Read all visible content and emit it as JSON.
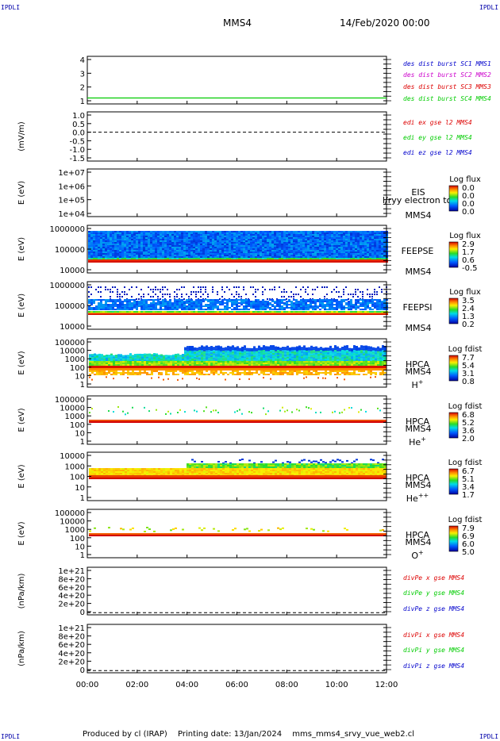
{
  "corners": [
    "IPDLI",
    "IPDLI",
    "IPDLI",
    "IPDLI"
  ],
  "header": {
    "spacecraft": "MMS4",
    "date": "14/Feb/2020 00:00"
  },
  "footer": {
    "produced_by": "Produced by cl (IRAP)",
    "printing_date": "Printing date: 13/Jan/2024",
    "script": "mms_mms4_srvy_vue_web2.cl"
  },
  "time_axis": {
    "ticks": [
      "00:00",
      "02:00",
      "04:00",
      "06:00",
      "08:00",
      "10:00",
      "12:00"
    ],
    "range_hours": [
      0,
      12
    ]
  },
  "colors": {
    "blue": "#0000cc",
    "magenta": "#cc00cc",
    "red": "#dd0000",
    "green": "#00cc00"
  },
  "chart_data": [
    {
      "type": "line",
      "id": "des",
      "ylabel": "",
      "yticks": [
        "4",
        "3",
        "2",
        "1"
      ],
      "ylim": [
        0.5,
        4.5
      ],
      "legend": [
        {
          "text": "des dist burst SC1 MMS1",
          "color": "#0000cc"
        },
        {
          "text": "des dist burst SC2 MMS2",
          "color": "#cc00cc"
        },
        {
          "text": "des dist burst SC3 MMS3",
          "color": "#dd0000"
        },
        {
          "text": "des dist burst SC4 MMS4",
          "color": "#00cc00"
        }
      ],
      "series": [
        {
          "name": "des dist burst SC4 MMS4",
          "x": [
            0,
            12
          ],
          "y": [
            1,
            1
          ]
        }
      ]
    },
    {
      "type": "line",
      "id": "edi",
      "ylabel": "(mV/m)",
      "yticks": [
        "1.0",
        "0.5",
        "0.0",
        "-0.5",
        "-1.0",
        "-1.5"
      ],
      "ylim": [
        -1.7,
        1.2
      ],
      "zero_line": true,
      "legend": [
        {
          "text": "edi ex gse l2 MMS4",
          "color": "#dd0000"
        },
        {
          "text": "edi ey gse l2 MMS4",
          "color": "#00cc00"
        },
        {
          "text": "edi ez gse l2 MMS4",
          "color": "#0000cc"
        }
      ]
    },
    {
      "type": "heatmap",
      "id": "eis",
      "ylabel": "E (eV)",
      "yticks": [
        "1e+07",
        "1e+06",
        "1e+05",
        "1e+04"
      ],
      "instrument": [
        "EIS",
        "MMS4"
      ],
      "overlay_label": "l/ryy electron to",
      "colorbar": {
        "title": "Log flux",
        "ticks": [
          "0.0",
          "0.0",
          "0.0",
          "0.0"
        ]
      }
    },
    {
      "type": "heatmap",
      "id": "feepse",
      "ylabel": "E (eV)",
      "yticks": [
        "1000000",
        "100000",
        "10000"
      ],
      "instrument": [
        "FEEPSE",
        "MMS4"
      ],
      "colorbar": {
        "title": "Log flux",
        "ticks": [
          "2.9",
          "1.7",
          "0.6",
          "-0.5"
        ]
      },
      "description": "dense blue band 30 keV to 1 MeV with red strip near 40 keV"
    },
    {
      "type": "heatmap",
      "id": "feepsi",
      "ylabel": "E (eV)",
      "yticks": [
        "1000000",
        "100000",
        "10000"
      ],
      "instrument": [
        "FEEPSI",
        "MMS4"
      ],
      "colorbar": {
        "title": "Log flux",
        "ticks": [
          "3.5",
          "2.4",
          "1.3",
          "0.2"
        ]
      }
    },
    {
      "type": "heatmap",
      "id": "hpca_h",
      "ylabel": "E (eV)",
      "yticks": [
        "100000",
        "10000",
        "1000",
        "100",
        "10",
        "1"
      ],
      "instrument": [
        "HPCA",
        "MMS4",
        "H",
        "+"
      ],
      "colorbar": {
        "title": "Log fdist",
        "ticks": [
          "7.7",
          "5.4",
          "3.1",
          "0.8"
        ]
      }
    },
    {
      "type": "heatmap",
      "id": "hpca_he",
      "ylabel": "E (eV)",
      "yticks": [
        "100000",
        "10000",
        "1000",
        "100",
        "10",
        "1"
      ],
      "instrument": [
        "HPCA",
        "MMS4",
        "He",
        "+"
      ],
      "colorbar": {
        "title": "Log fdist",
        "ticks": [
          "6.8",
          "5.2",
          "3.6",
          "2.0"
        ]
      }
    },
    {
      "type": "heatmap",
      "id": "hpca_hepp",
      "ylabel": "E (eV)",
      "yticks": [
        "10000",
        "1000",
        "100",
        "10",
        "1"
      ],
      "instrument": [
        "HPCA",
        "MMS4",
        "He",
        "++"
      ],
      "colorbar": {
        "title": "Log fdist",
        "ticks": [
          "6.7",
          "5.1",
          "3.4",
          "1.7"
        ]
      }
    },
    {
      "type": "heatmap",
      "id": "hpca_o",
      "ylabel": "E (eV)",
      "yticks": [
        "100000",
        "10000",
        "1000",
        "100",
        "10",
        "1"
      ],
      "instrument": [
        "HPCA",
        "MMS4",
        "O",
        "+"
      ],
      "colorbar": {
        "title": "Log fdist",
        "ticks": [
          "7.9",
          "6.9",
          "6.0",
          "5.0"
        ]
      }
    },
    {
      "type": "line",
      "id": "divpe",
      "ylabel": "(nPa/km)",
      "yticks": [
        "1e+21",
        "8e+20",
        "6e+20",
        "4e+20",
        "2e+20",
        "0"
      ],
      "ylim": [
        -0.05,
        1.05
      ],
      "zero_line": true,
      "legend": [
        {
          "text": "divPe x gse MMS4",
          "color": "#dd0000"
        },
        {
          "text": "divPe y gse MMS4",
          "color": "#00cc00"
        },
        {
          "text": "divPe z gse MMS4",
          "color": "#0000cc"
        }
      ]
    },
    {
      "type": "line",
      "id": "divpi",
      "ylabel": "(nPa/km)",
      "yticks": [
        "1e+21",
        "8e+20",
        "6e+20",
        "4e+20",
        "2e+20",
        "0"
      ],
      "ylim": [
        -0.05,
        1.05
      ],
      "zero_line": true,
      "legend": [
        {
          "text": "divPi x gse MMS4",
          "color": "#dd0000"
        },
        {
          "text": "divPi y gse MMS4",
          "color": "#00cc00"
        },
        {
          "text": "divPi z gse MMS4",
          "color": "#0000cc"
        }
      ]
    }
  ]
}
